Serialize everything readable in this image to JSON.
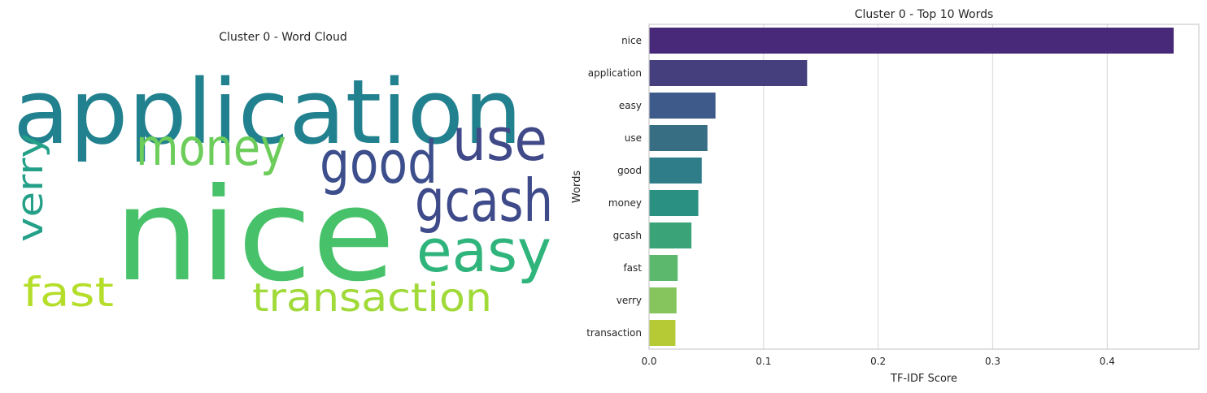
{
  "wordcloud": {
    "title": "Cluster 0 - Word Cloud",
    "words": [
      {
        "text": "application",
        "color": "#22818e"
      },
      {
        "text": "nice",
        "color": "#48c26a"
      },
      {
        "text": "money",
        "color": "#6ccd5a"
      },
      {
        "text": "good",
        "color": "#3c4e8c"
      },
      {
        "text": "use",
        "color": "#414a89"
      },
      {
        "text": "gcash",
        "color": "#3e4a89"
      },
      {
        "text": "easy",
        "color": "#2fb47c"
      },
      {
        "text": "verry",
        "color": "#24a088"
      },
      {
        "text": "fast",
        "color": "#b5de2b"
      },
      {
        "text": "transaction",
        "color": "#a0da39"
      }
    ]
  },
  "chart_data": {
    "type": "bar",
    "orientation": "horizontal",
    "title": "Cluster 0 - Top 10 Words",
    "xlabel": "TF-IDF Score",
    "ylabel": "Words",
    "categories": [
      "nice",
      "application",
      "easy",
      "use",
      "good",
      "money",
      "gcash",
      "fast",
      "verry",
      "transaction"
    ],
    "values": [
      0.458,
      0.138,
      0.058,
      0.051,
      0.046,
      0.043,
      0.037,
      0.025,
      0.024,
      0.023
    ],
    "colors": [
      "#482878",
      "#453f7d",
      "#3d5a8a",
      "#376e83",
      "#2e7d88",
      "#2a9082",
      "#3aa377",
      "#5cb86c",
      "#86c45e",
      "#b5ca35"
    ],
    "xticks": [
      0.0,
      0.1,
      0.2,
      0.3,
      0.4
    ],
    "xtick_labels": [
      "0.0",
      "0.1",
      "0.2",
      "0.3",
      "0.4"
    ],
    "xlim": [
      0,
      0.48
    ],
    "grid": true
  }
}
